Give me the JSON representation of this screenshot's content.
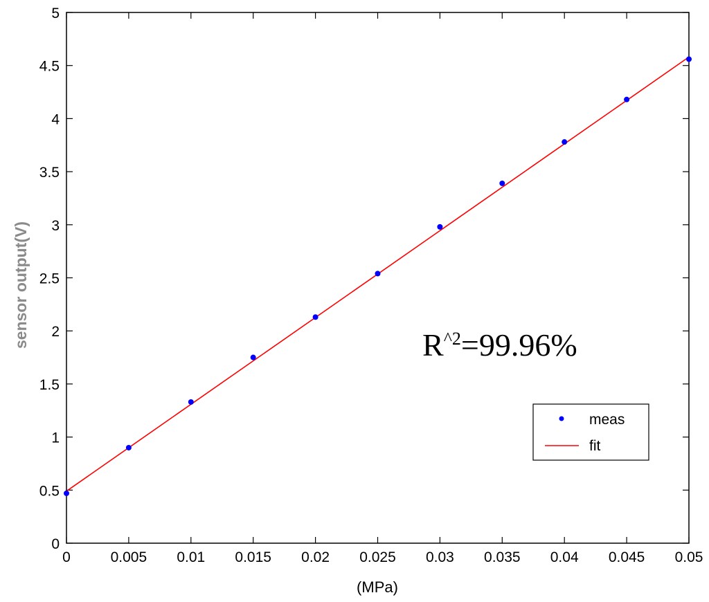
{
  "chart_data": {
    "type": "scatter",
    "title": "",
    "xlabel": "(MPa)",
    "ylabel": "sensor output(V)",
    "xlim": [
      0,
      0.05
    ],
    "ylim": [
      0,
      5
    ],
    "grid": false,
    "x_ticks": [
      0,
      0.005,
      0.01,
      0.015,
      0.02,
      0.025,
      0.03,
      0.035,
      0.04,
      0.045,
      0.05
    ],
    "x_tick_labels": [
      "0",
      "0.005",
      "0.01",
      "0.015",
      "0.02",
      "0.025",
      "0.03",
      "0.035",
      "0.04",
      "0.045",
      "0.05"
    ],
    "y_ticks": [
      0,
      0.5,
      1,
      1.5,
      2,
      2.5,
      3,
      3.5,
      4,
      4.5,
      5
    ],
    "y_tick_labels": [
      "0",
      "0.5",
      "1",
      "1.5",
      "2",
      "2.5",
      "3",
      "3.5",
      "4",
      "4.5",
      "5"
    ],
    "series": [
      {
        "name": "meas",
        "style": "markers",
        "color": "#0000ff",
        "x": [
          0,
          0.005,
          0.01,
          0.015,
          0.02,
          0.025,
          0.03,
          0.035,
          0.04,
          0.045,
          0.05
        ],
        "y": [
          0.47,
          0.9,
          1.33,
          1.75,
          2.13,
          2.54,
          2.98,
          3.39,
          3.78,
          4.18,
          4.56
        ]
      },
      {
        "name": "fit",
        "style": "line",
        "color": "#ff0000",
        "x": [
          0,
          0.05
        ],
        "y": [
          0.49,
          4.58
        ]
      }
    ],
    "legend": {
      "position": "lower-right",
      "entries": [
        "meas",
        "fit"
      ]
    },
    "annotation": {
      "base": "R",
      "sup": "^2",
      "rest": "=99.96%"
    }
  }
}
